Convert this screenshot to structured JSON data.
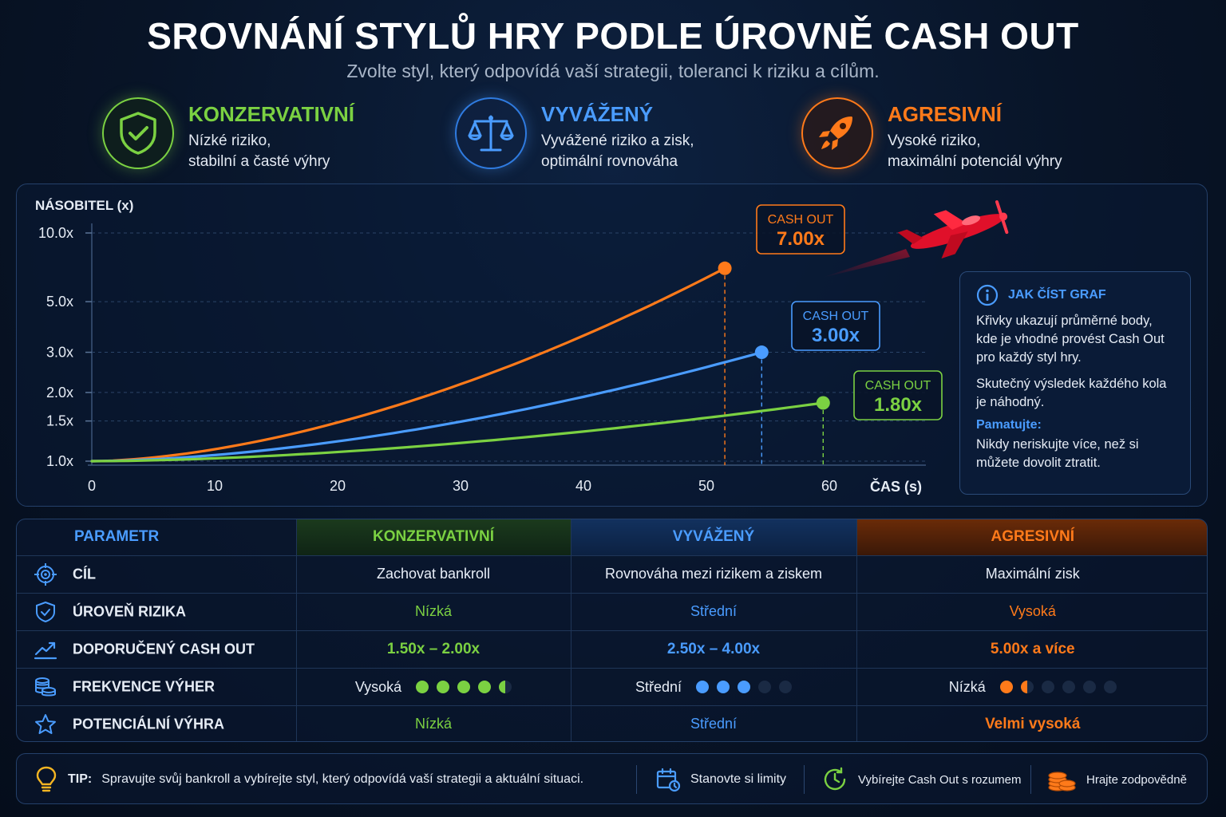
{
  "header": {
    "title": "SROVNÁNÍ STYLŮ HRY PODLE ÚROVNĚ CASH OUT",
    "subtitle": "Zvolte styl, který odpovídá vaší strategii, toleranci k riziku a cílům."
  },
  "styles": [
    {
      "name": "KONZERVATIVNÍ",
      "desc1": "Nízké riziko,",
      "desc2": "stabilní a časté výhry",
      "color": "#7bd142",
      "icon": "shield-check-icon"
    },
    {
      "name": "VYVÁŽENÝ",
      "desc1": "Vyvážené riziko a zisk,",
      "desc2": "optimální rovnováha",
      "color": "#4a9cff",
      "icon": "scales-icon"
    },
    {
      "name": "AGRESIVNÍ",
      "desc1": "Vysoké riziko,",
      "desc2": "maximální potenciál výhry",
      "color": "#ff7a1a",
      "icon": "rocket-icon"
    }
  ],
  "chart_data": {
    "type": "line",
    "ylabel": "NÁSOBITEL (x)",
    "xlabel": "ČAS (s)",
    "x_ticks": [
      0,
      10,
      20,
      30,
      40,
      50,
      60
    ],
    "y_ticks": [
      "1.0x",
      "1.5x",
      "2.0x",
      "3.0x",
      "5.0x",
      "10.0x"
    ],
    "y_scale": "log",
    "xlim": [
      0,
      67
    ],
    "grid": true,
    "series": [
      {
        "style": "agresivni",
        "color": "#ff7a1a",
        "end_x": 51.5,
        "end_y": 7.0,
        "cashout_label": "CASH OUT",
        "cashout_value": "7.00x"
      },
      {
        "style": "vyvazeny",
        "color": "#4a9cff",
        "end_x": 54.5,
        "end_y": 3.0,
        "cashout_label": "CASH OUT",
        "cashout_value": "3.00x"
      },
      {
        "style": "konzervativni",
        "color": "#7bd142",
        "end_x": 59.5,
        "end_y": 1.8,
        "cashout_label": "CASH OUT",
        "cashout_value": "1.80x"
      }
    ]
  },
  "info": {
    "title": "JAK ČÍST GRAF",
    "p1": "Křivky ukazují průměrné body, kde je vhodné provést Cash Out pro každý styl hry.",
    "p2": "Skutečný výsledek každého kola je náhodný.",
    "remember_label": "Pamatujte:",
    "p3": "Nikdy neriskujte více, než si můžete dovolit ztratit."
  },
  "table": {
    "headers": [
      "PARAMETR",
      "KONZERVATIVNÍ",
      "VYVÁŽENÝ",
      "AGRESIVNÍ"
    ],
    "rows": [
      {
        "label": "CÍL",
        "icon": "target-icon",
        "values": [
          "Zachovat bankroll",
          "Rovnováha mezi rizikem a ziskem",
          "Maximální zisk"
        ]
      },
      {
        "label": "ÚROVEŇ RIZIKA",
        "icon": "shield-icon",
        "values": [
          "Nízká",
          "Střední",
          "Vysoká"
        ]
      },
      {
        "label": "DOPORUČENÝ CASH OUT",
        "icon": "trend-up-icon",
        "values": [
          "1.50x – 2.00x",
          "2.50x – 4.00x",
          "5.00x a více"
        ]
      },
      {
        "label": "FREKVENCE VÝHER",
        "icon": "coins-stack-icon",
        "values": [
          "Vysoká",
          "Střední",
          "Nízká"
        ],
        "levels": [
          4.5,
          3,
          1.5
        ],
        "dot_counts": [
          5,
          5,
          6
        ]
      },
      {
        "label": "POTENCIÁLNÍ VÝHRA",
        "icon": "star-icon",
        "values": [
          "Nízká",
          "Střední",
          "Velmi vysoká"
        ]
      }
    ]
  },
  "tips": {
    "tip_label": "TIP:",
    "tip_text": "Spravujte svůj bankroll a vybírejte styl, který odpovídá vaší strategii a aktuální situaci.",
    "limits": "Stanovte si limity",
    "cashout": "Vybírejte Cash Out s rozumem",
    "responsible": "Hrajte zodpovědně"
  }
}
